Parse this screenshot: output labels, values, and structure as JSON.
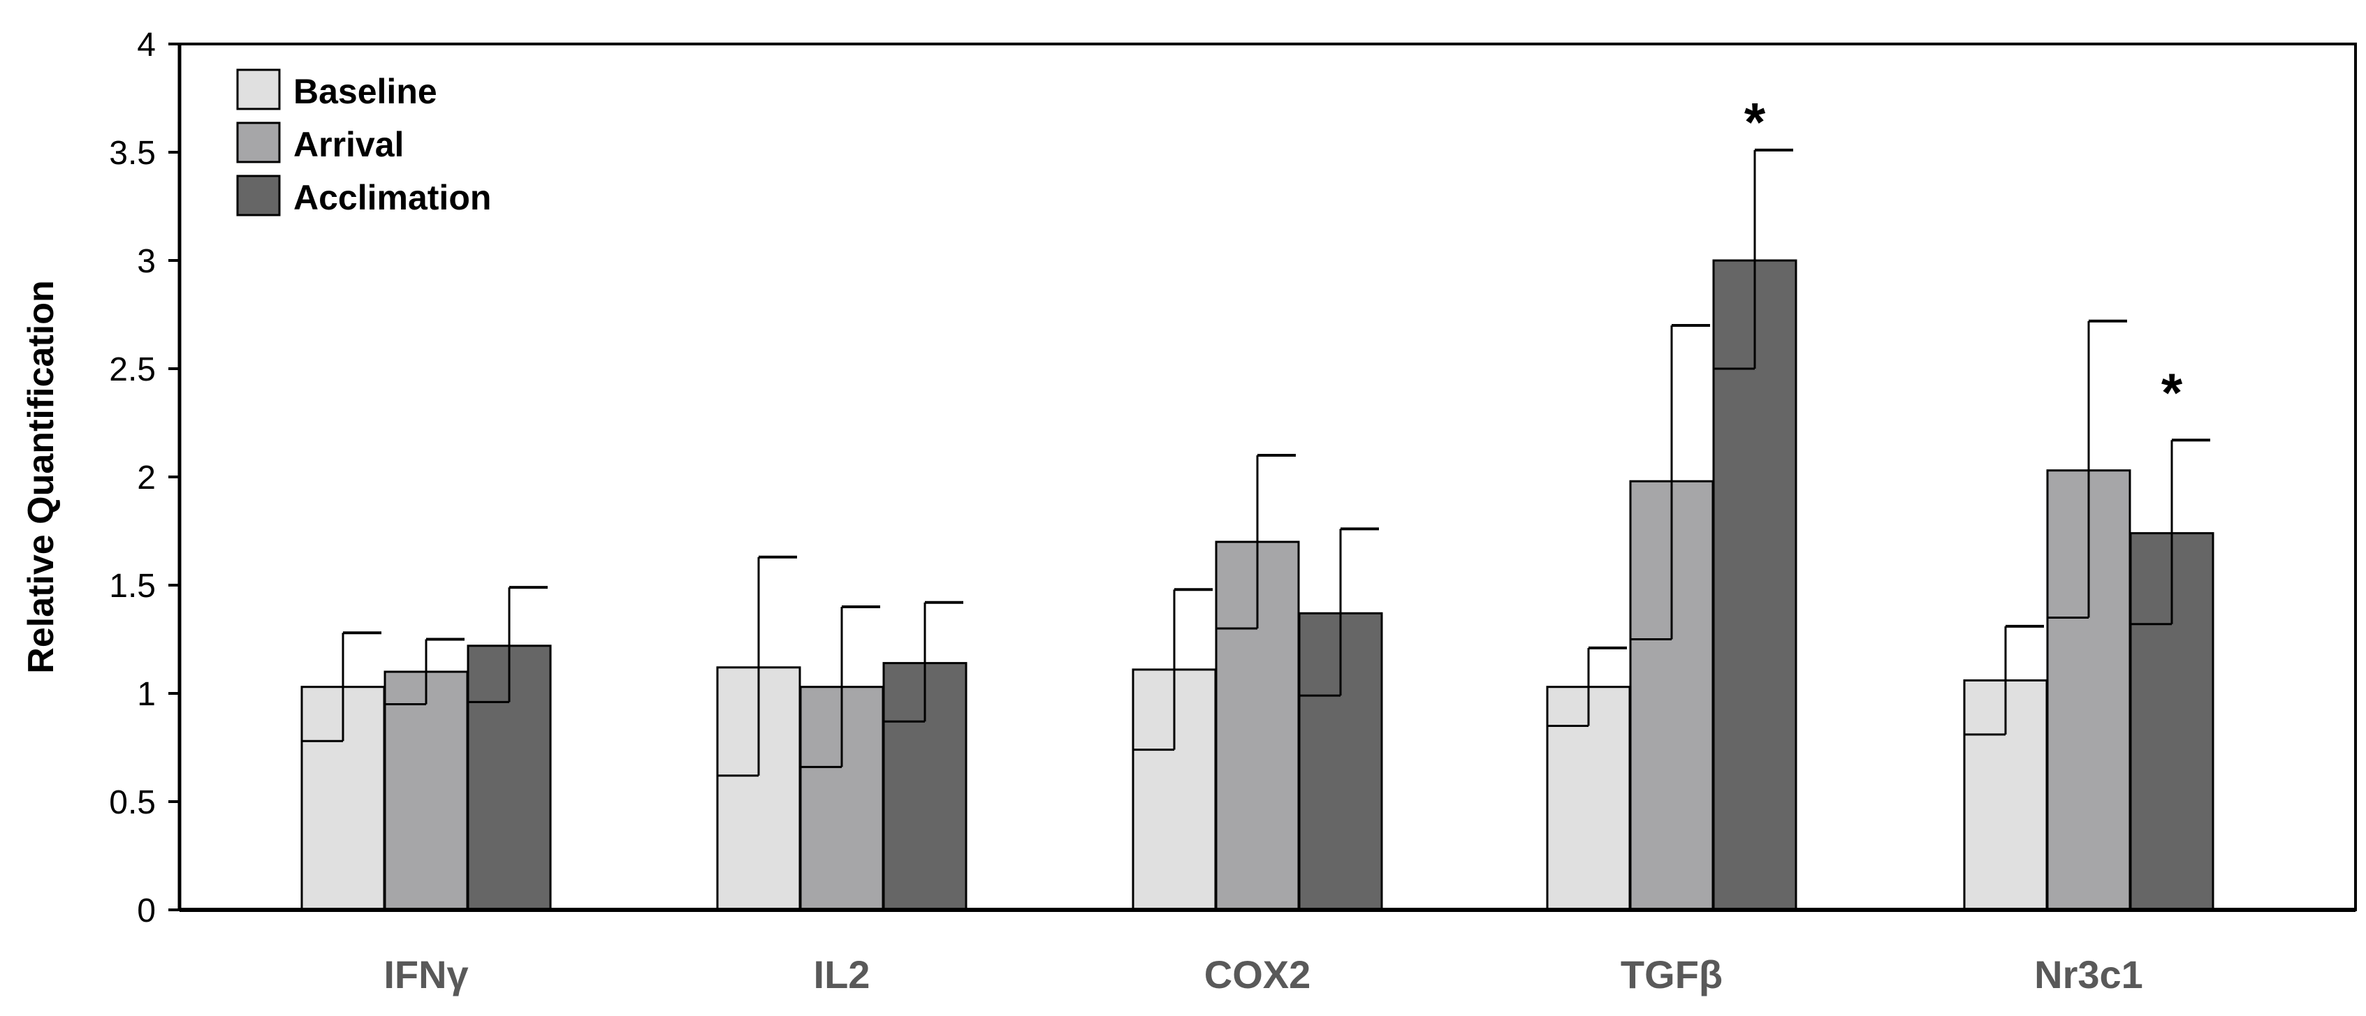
{
  "chart_data": {
    "type": "bar",
    "title": "",
    "xlabel": "",
    "ylabel": "Relative Quantification",
    "ylim": [
      0,
      4
    ],
    "yticks": [
      "0",
      "0.5",
      "1",
      "1.5",
      "2",
      "2.5",
      "3",
      "3.5",
      "4"
    ],
    "grid": false,
    "legend_position": "top-left",
    "categories": [
      "IFNγ",
      "IL2",
      "COX2",
      "TGFβ",
      "Nr3c1"
    ],
    "series": [
      {
        "name": "Baseline",
        "color": "#e0e0e0",
        "values": [
          1.03,
          1.12,
          1.11,
          1.03,
          1.06
        ],
        "err_upper": [
          1.28,
          1.63,
          1.48,
          1.21,
          1.31
        ],
        "err_lower": [
          0.78,
          0.62,
          0.74,
          0.85,
          0.81
        ]
      },
      {
        "name": "Arrival",
        "color": "#a6a6a8",
        "values": [
          1.1,
          1.03,
          1.7,
          1.98,
          2.03
        ],
        "err_upper": [
          1.25,
          1.4,
          2.1,
          2.7,
          2.72
        ],
        "err_lower": [
          0.95,
          0.66,
          1.3,
          1.25,
          1.35
        ]
      },
      {
        "name": "Acclimation",
        "color": "#666666",
        "values": [
          1.22,
          1.14,
          1.37,
          3.0,
          1.74
        ],
        "err_upper": [
          1.49,
          1.42,
          1.76,
          3.51,
          2.17
        ],
        "err_lower": [
          0.96,
          0.87,
          0.99,
          2.5,
          1.32
        ]
      }
    ],
    "annotations": [
      {
        "text": "*",
        "category": "TGFβ",
        "series": "Acclimation",
        "y": 3.65
      },
      {
        "text": "*",
        "category": "Nr3c1",
        "series": "Acclimation",
        "y": 2.4
      }
    ]
  }
}
